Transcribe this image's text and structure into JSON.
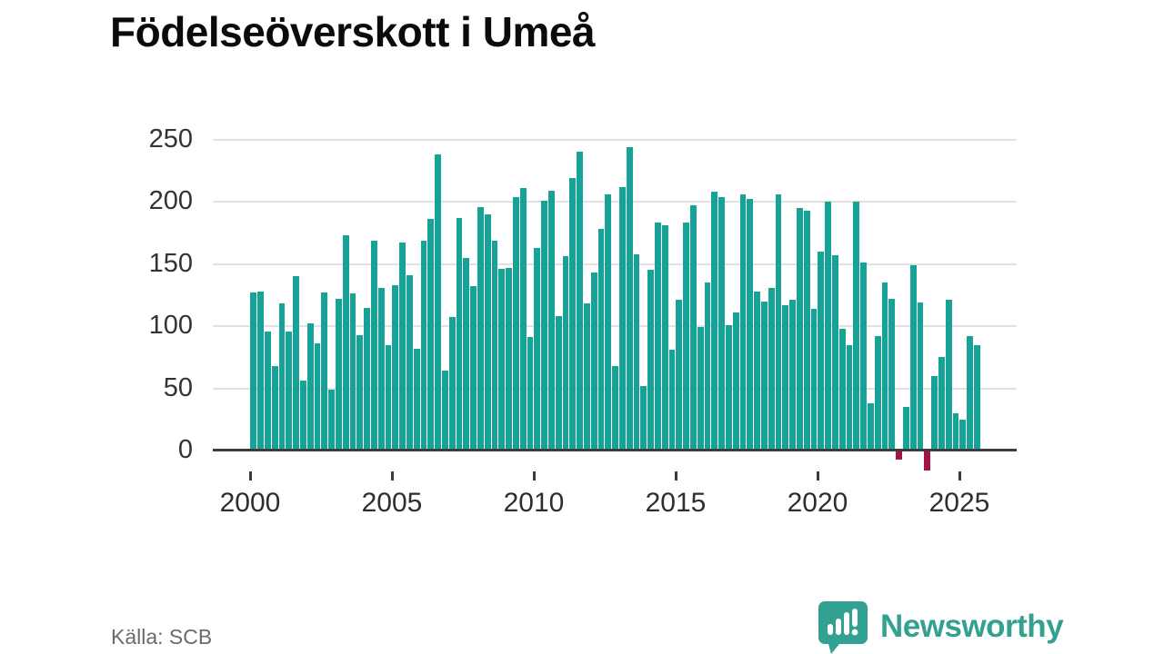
{
  "title": "Födelseöverskott i Umeå",
  "source": "Källa: SCB",
  "brand": {
    "name": "Newsworthy"
  },
  "colors": {
    "bar_positive": "#16a296",
    "bar_negative": "#a31540",
    "gridline": "#e1e1e1",
    "axis": "#3c3c3c",
    "tick_label": "#333333",
    "title": "#0b0b0b",
    "source": "#6b6b6b",
    "brand_teal": "#33a191",
    "background": "#ffffff"
  },
  "chart_data": {
    "type": "bar",
    "title": "Födelseöverskott i Umeå",
    "frequency": "quarterly",
    "x_start": "2000-Q1",
    "x_end": "2025-Q3",
    "xlabel": "",
    "ylabel": "",
    "ylim": [
      -25,
      260
    ],
    "grid": true,
    "y_ticks": [
      0,
      50,
      100,
      150,
      200,
      250
    ],
    "x_tick_years": [
      2000,
      2005,
      2010,
      2015,
      2020,
      2025
    ],
    "x_tick_labels": [
      "2000",
      "2005",
      "2010",
      "2015",
      "2020",
      "2025"
    ],
    "values": [
      127,
      128,
      96,
      68,
      118,
      96,
      140,
      56,
      102,
      86,
      127,
      49,
      122,
      173,
      126,
      93,
      115,
      169,
      131,
      85,
      133,
      167,
      141,
      82,
      169,
      186,
      238,
      64,
      107,
      187,
      155,
      132,
      196,
      190,
      169,
      146,
      147,
      204,
      211,
      91,
      163,
      201,
      209,
      108,
      156,
      219,
      240,
      118,
      143,
      178,
      206,
      68,
      212,
      244,
      158,
      52,
      145,
      183,
      181,
      81,
      121,
      183,
      197,
      99,
      135,
      208,
      204,
      101,
      111,
      206,
      202,
      128,
      120,
      131,
      206,
      117,
      121,
      195,
      193,
      114,
      160,
      200,
      157,
      98,
      85,
      200,
      151,
      38,
      92,
      135,
      122,
      -7,
      35,
      149,
      119,
      -16,
      60,
      75,
      121,
      30,
      25,
      92,
      85
    ]
  }
}
